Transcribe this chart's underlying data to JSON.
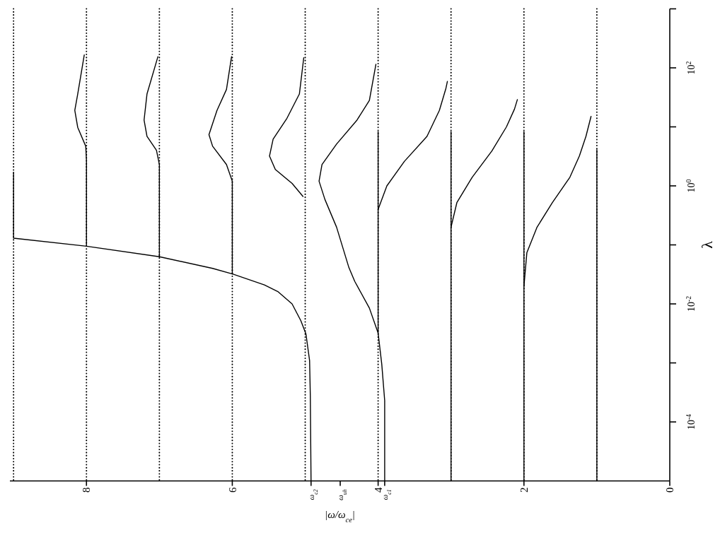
{
  "chart_data": {
    "type": "line",
    "xlabel": "|ω/ω$_{ce}$|",
    "ylabel": "λ",
    "log": "y",
    "line_style": "solid",
    "xlim": [
      9.05,
      0
    ],
    "ylim": [
      1e-05,
      1000
    ],
    "xticks": [
      0,
      2,
      {
        "value": 3.91,
        "label": "ω$_{c1}$"
      },
      4,
      {
        "value": 4.52,
        "label": "ω$_{uh}$"
      },
      {
        "value": 4.92,
        "label": "ω$_{c2}$"
      },
      6,
      8
    ],
    "yticks": [
      {
        "value": 0.0001,
        "label": "10$^{-4}$"
      },
      {
        "value": 0.001,
        "label": null
      },
      {
        "value": 0.01,
        "label": "10$^{-2}$"
      },
      {
        "value": 0.1,
        "label": null
      },
      {
        "value": 1,
        "label": "10$^{0}$"
      },
      {
        "value": 10,
        "label": null
      },
      {
        "value": 100,
        "label": "10$^{2}$"
      },
      {
        "value": 1000,
        "label": null
      }
    ],
    "ref_lines": [
      {
        "axis": "x",
        "value": 1,
        "line_style": "dotted"
      },
      {
        "axis": "x",
        "value": 2,
        "line_style": "dotted"
      },
      {
        "axis": "x",
        "value": 3,
        "line_style": "dotted"
      },
      {
        "axis": "x",
        "value": 4,
        "line_style": "dotted"
      },
      {
        "axis": "x",
        "value": 5,
        "line_style": "dotted"
      },
      {
        "axis": "x",
        "value": 6,
        "line_style": "dotted"
      },
      {
        "axis": "x",
        "value": 7,
        "line_style": "dotted"
      },
      {
        "axis": "x",
        "value": 8,
        "line_style": "dotted"
      },
      {
        "axis": "x",
        "value": 9,
        "line_style": "dotted"
      }
    ],
    "series": [
      {
        "color": "#000000",
        "x": [
          1,
          1
        ],
        "values": [
          1e-05,
          4.1
        ]
      },
      {
        "color": "#000000",
        "x": [
          2,
          2
        ],
        "values": [
          1e-05,
          8.3
        ]
      },
      {
        "color": "#000000",
        "x": [
          3,
          3
        ],
        "values": [
          1e-05,
          8.3
        ]
      },
      {
        "color": "#000000",
        "x": [
          4,
          4
        ],
        "values": [
          0.0032,
          8.3
        ]
      },
      {
        "color": "#000000",
        "x": [
          2.0,
          1.96,
          1.82,
          1.61,
          1.37,
          1.24,
          1.15,
          1.08
        ],
        "values": [
          0.02,
          0.074,
          0.2,
          0.52,
          1.4,
          3.2,
          6.9,
          15
        ]
      },
      {
        "color": "#000000",
        "x": [
          3.0,
          2.92,
          2.71,
          2.44,
          2.24,
          2.13,
          2.09
        ],
        "values": [
          0.2,
          0.52,
          1.4,
          3.9,
          10,
          20,
          29
        ]
      },
      {
        "color": "#000000",
        "x": [
          4.0,
          3.88,
          3.64,
          3.33,
          3.16,
          3.07,
          3.05
        ],
        "values": [
          0.4,
          1.0,
          2.6,
          6.9,
          19,
          45,
          59
        ]
      },
      {
        "color": "#000000",
        "x": [
          3.91,
          3.91,
          3.95,
          4.0,
          4.12,
          4.32,
          4.4,
          4.57,
          4.73,
          4.81,
          4.77,
          4.57,
          4.29,
          4.12,
          4.03
        ],
        "values": [
          1e-05,
          0.00023,
          0.00095,
          0.0032,
          0.0085,
          0.024,
          0.041,
          0.2,
          0.59,
          1.2,
          2.3,
          5.1,
          13,
          28,
          115
        ]
      },
      {
        "color": "#000000",
        "x": [
          5.03,
          5.18,
          5.41,
          5.49,
          5.44,
          5.25,
          5.08,
          5.02
        ],
        "values": [
          0.66,
          1.1,
          1.9,
          3.2,
          6.2,
          14,
          36,
          148
        ]
      },
      {
        "color": "#000000",
        "x": [
          6.0,
          6.0,
          6.08,
          6.27,
          6.32,
          6.21,
          6.08,
          6.01
        ],
        "values": [
          0.032,
          1.2,
          2.3,
          4.7,
          7.4,
          19,
          43,
          155
        ]
      },
      {
        "color": "#000000",
        "x": [
          7.0,
          7.0,
          7.04,
          7.17,
          7.21,
          7.17,
          7.02
        ],
        "values": [
          0.063,
          2.3,
          4.0,
          6.9,
          13,
          36,
          155
        ]
      },
      {
        "color": "#000000",
        "x": [
          8.0,
          8.0,
          8.01,
          8.12,
          8.16,
          8.12,
          8.03
        ],
        "values": [
          0.095,
          2.7,
          4.7,
          9.8,
          19,
          36,
          166
        ]
      },
      {
        "color": "#000000",
        "x": [
          4.92,
          4.93,
          4.94,
          4.99,
          5.06,
          5.18,
          5.37,
          5.56,
          5.99,
          6.27,
          7.0,
          8.0,
          9.0,
          9.0
        ],
        "values": [
          1e-05,
          0.00028,
          0.0011,
          0.0031,
          0.0052,
          0.01,
          0.016,
          0.021,
          0.032,
          0.04,
          0.063,
          0.095,
          0.13,
          1.7
        ]
      }
    ]
  }
}
